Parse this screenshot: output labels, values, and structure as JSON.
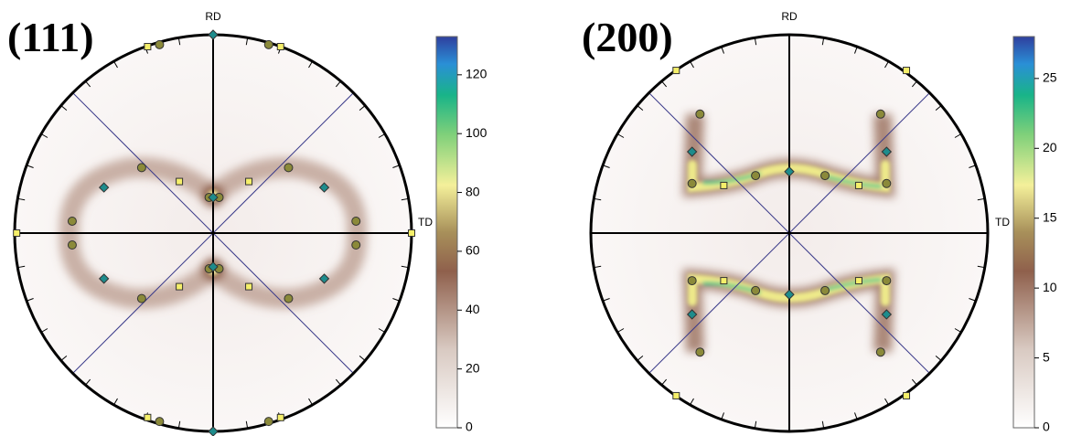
{
  "chart_data": [
    {
      "type": "pole-figure",
      "title": "(111)",
      "y_label": "RD",
      "x_label": "TD",
      "xlim": [
        -1,
        1
      ],
      "ylim": [
        -1,
        1
      ],
      "clim": [
        0,
        133
      ],
      "cticks": [
        0,
        20,
        40,
        60,
        80,
        100,
        120
      ],
      "series": [
        {
          "shape": "circle",
          "color": "#8b8a3a",
          "x": [
            -0.27,
            0.28,
            -0.36,
            0.38,
            -0.71,
            0.72,
            -0.71,
            0.72,
            -0.36,
            0.38,
            -0.02,
            0.03,
            -0.02,
            0.03,
            -0.27,
            0.28
          ],
          "y": [
            0.95,
            0.95,
            0.33,
            0.33,
            0.06,
            0.06,
            -0.06,
            -0.06,
            -0.33,
            -0.33,
            0.18,
            0.18,
            -0.18,
            -0.18,
            -0.95,
            -0.95
          ]
        },
        {
          "shape": "square",
          "color": "#f5ef6a",
          "x": [
            -0.33,
            0.34,
            -0.17,
            0.18,
            -0.99,
            1.0,
            -0.17,
            0.18,
            -0.33,
            0.34
          ],
          "y": [
            0.94,
            0.94,
            0.26,
            0.26,
            0,
            0,
            -0.27,
            -0.27,
            -0.93,
            -0.93
          ]
        },
        {
          "shape": "diamond",
          "color": "#1e8c8c",
          "x": [
            0,
            0,
            -0.55,
            0.56,
            -0.55,
            0.56,
            0,
            0
          ],
          "y": [
            1.0,
            -1.0,
            0.23,
            0.23,
            -0.23,
            -0.23,
            0.18,
            -0.17
          ]
        }
      ]
    },
    {
      "type": "pole-figure",
      "title": "(200)",
      "y_label": "RD",
      "x_label": "TD",
      "xlim": [
        -1,
        1
      ],
      "ylim": [
        -1,
        1
      ],
      "clim": [
        0,
        28
      ],
      "cticks": [
        0,
        5,
        10,
        15,
        20,
        25
      ],
      "series": [
        {
          "shape": "circle",
          "color": "#8b8a3a",
          "x": [
            -0.45,
            0.46,
            -0.17,
            0.18,
            -0.49,
            0.49,
            -0.49,
            0.49,
            -0.17,
            0.18,
            -0.45,
            0.46
          ],
          "y": [
            0.6,
            0.6,
            0.29,
            0.29,
            0.25,
            0.25,
            -0.24,
            -0.24,
            -0.29,
            -0.29,
            -0.6,
            -0.6
          ]
        },
        {
          "shape": "square",
          "color": "#f5ef6a",
          "x": [
            -0.57,
            0.59,
            -0.33,
            0.35,
            -0.33,
            0.35,
            -0.57,
            0.59
          ],
          "y": [
            0.82,
            0.82,
            0.24,
            0.24,
            -0.24,
            -0.24,
            -0.82,
            -0.82
          ]
        },
        {
          "shape": "diamond",
          "color": "#1e8c8c",
          "x": [
            -0.49,
            0.49,
            0,
            0,
            -0.49,
            0.49
          ],
          "y": [
            0.41,
            0.41,
            0.31,
            -0.31,
            -0.41,
            -0.41
          ]
        }
      ]
    }
  ]
}
